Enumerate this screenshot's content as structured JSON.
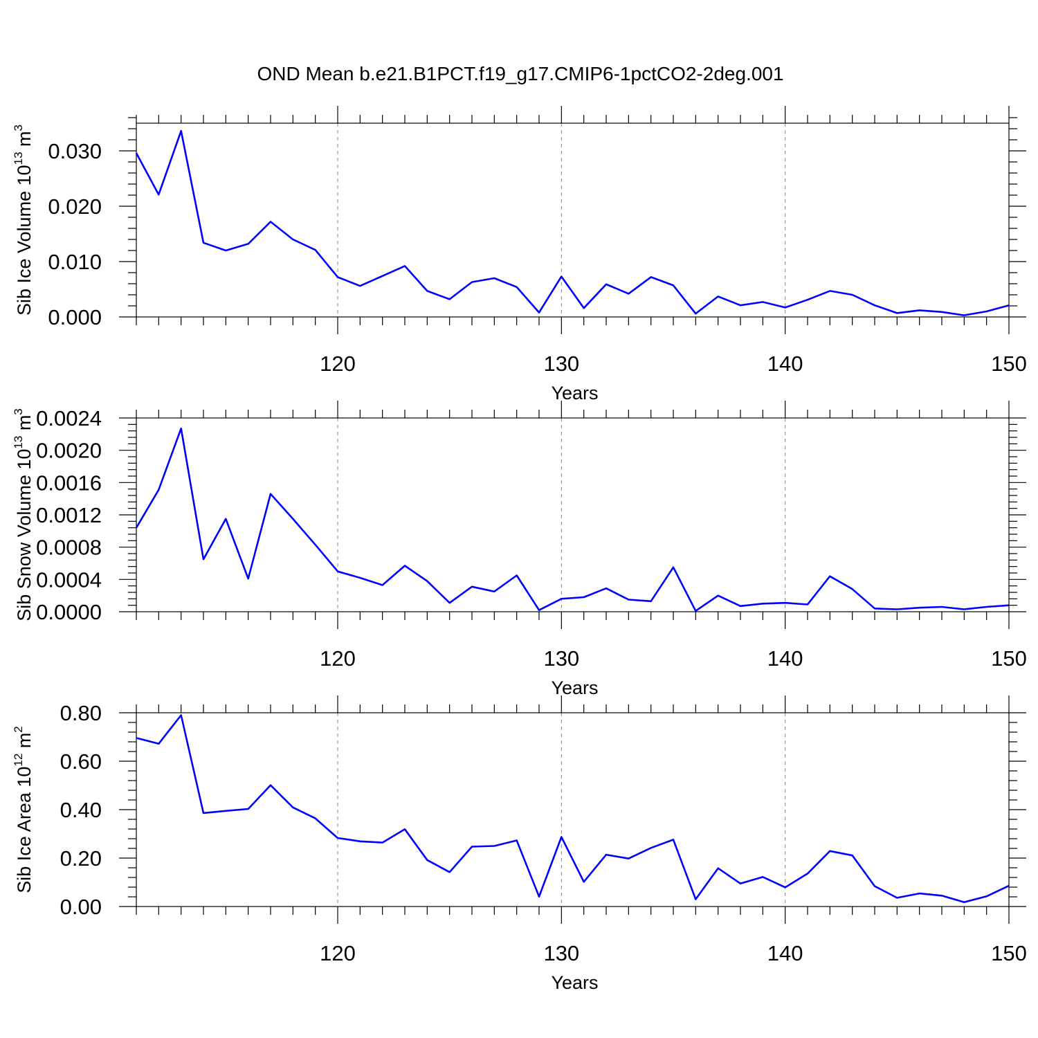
{
  "figure": {
    "title": "OND Mean b.e21.B1PCT.f19_g17.CMIP6-1pctCO2-2deg.001"
  },
  "chart_data": [
    {
      "type": "line",
      "title": "OND Mean b.e21.B1PCT.f19_g17.CMIP6-1pctCO2-2deg.001",
      "xlabel": "Years",
      "ylabel": "Sib Ice Volume 10^13 m^3",
      "ylabel_parts": {
        "text": "Sib Ice Volume 10",
        "exp1": "13",
        "unit": " m",
        "exp2": "3"
      },
      "xlim": [
        111,
        150
      ],
      "ylim": [
        0,
        0.035
      ],
      "xticks": [
        120,
        130,
        140,
        150
      ],
      "yticks": [
        0.0,
        0.01,
        0.02,
        0.03
      ],
      "ytick_labels": [
        "0.000",
        "0.010",
        "0.020",
        "0.030"
      ],
      "grid": "vertical-dashed",
      "line_color": "#0000ff",
      "series": [
        {
          "x": [
            111,
            112,
            113,
            114,
            115,
            116,
            117,
            118,
            119,
            120,
            121,
            122,
            123,
            124,
            125,
            126,
            127,
            128,
            129,
            130,
            131,
            132,
            133,
            134,
            135,
            136,
            137,
            138,
            139,
            140,
            141,
            142,
            143,
            144,
            145,
            146,
            147,
            148,
            149,
            150
          ],
          "values": [
            0.0296,
            0.0221,
            0.0336,
            0.0134,
            0.012,
            0.0132,
            0.0172,
            0.014,
            0.0121,
            0.0072,
            0.0056,
            0.0074,
            0.0092,
            0.0047,
            0.0032,
            0.0063,
            0.007,
            0.0054,
            0.0008,
            0.0073,
            0.0016,
            0.0059,
            0.0042,
            0.0072,
            0.0057,
            0.0006,
            0.0037,
            0.0021,
            0.0027,
            0.0017,
            0.0031,
            0.0047,
            0.004,
            0.0021,
            0.0007,
            0.0012,
            0.0009,
            0.0003,
            0.001,
            0.0021
          ]
        }
      ]
    },
    {
      "type": "line",
      "xlabel": "Years",
      "ylabel": "Sib Snow Volume 10^13 m^3",
      "ylabel_parts": {
        "text": "Sib Snow Volume 10",
        "exp1": "13",
        "unit": " m",
        "exp2": "3"
      },
      "xlim": [
        111,
        150
      ],
      "ylim": [
        0,
        0.0024
      ],
      "xticks": [
        120,
        130,
        140,
        150
      ],
      "yticks": [
        0.0,
        0.0004,
        0.0008,
        0.0012,
        0.0016,
        0.002,
        0.0024
      ],
      "ytick_labels": [
        "0.0000",
        "0.0004",
        "0.0008",
        "0.0012",
        "0.0016",
        "0.0020",
        "0.0024"
      ],
      "grid": "vertical-dashed",
      "line_color": "#0000ff",
      "series": [
        {
          "x": [
            111,
            112,
            113,
            114,
            115,
            116,
            117,
            118,
            119,
            120,
            121,
            122,
            123,
            124,
            125,
            126,
            127,
            128,
            129,
            130,
            131,
            132,
            133,
            134,
            135,
            136,
            137,
            138,
            139,
            140,
            141,
            142,
            143,
            144,
            145,
            146,
            147,
            148,
            149,
            150
          ],
          "values": [
            0.00104,
            0.00151,
            0.00227,
            0.00065,
            0.00115,
            0.00041,
            0.00146,
            0.00115,
            0.00083,
            0.0005,
            0.00042,
            0.00033,
            0.00057,
            0.00038,
            0.00011,
            0.00031,
            0.00025,
            0.00045,
            2e-05,
            0.00016,
            0.00018,
            0.00029,
            0.00015,
            0.00013,
            0.00055,
            1e-05,
            0.0002,
            7e-05,
            0.0001,
            0.00011,
            9e-05,
            0.00044,
            0.00028,
            4e-05,
            3e-05,
            5e-05,
            6e-05,
            3e-05,
            6e-05,
            8e-05
          ]
        }
      ]
    },
    {
      "type": "line",
      "xlabel": "Years",
      "ylabel": "Sib Ice Area 10^12 m^2",
      "ylabel_parts": {
        "text": "Sib Ice Area 10",
        "exp1": "12",
        "unit": " m",
        "exp2": "2"
      },
      "xlim": [
        111,
        150
      ],
      "ylim": [
        0,
        0.8
      ],
      "xticks": [
        120,
        130,
        140,
        150
      ],
      "yticks": [
        0.0,
        0.2,
        0.4,
        0.6,
        0.8
      ],
      "ytick_labels": [
        "0.00",
        "0.20",
        "0.40",
        "0.60",
        "0.80"
      ],
      "grid": "vertical-dashed",
      "line_color": "#0000ff",
      "series": [
        {
          "x": [
            111,
            112,
            113,
            114,
            115,
            116,
            117,
            118,
            119,
            120,
            121,
            122,
            123,
            124,
            125,
            126,
            127,
            128,
            129,
            130,
            131,
            132,
            133,
            134,
            135,
            136,
            137,
            138,
            139,
            140,
            141,
            142,
            143,
            144,
            145,
            146,
            147,
            148,
            149,
            150
          ],
          "values": [
            0.696,
            0.672,
            0.79,
            0.386,
            0.395,
            0.403,
            0.501,
            0.409,
            0.364,
            0.283,
            0.269,
            0.264,
            0.319,
            0.192,
            0.142,
            0.247,
            0.25,
            0.273,
            0.041,
            0.287,
            0.102,
            0.214,
            0.198,
            0.242,
            0.276,
            0.03,
            0.158,
            0.095,
            0.122,
            0.079,
            0.136,
            0.229,
            0.211,
            0.084,
            0.036,
            0.054,
            0.045,
            0.018,
            0.042,
            0.086
          ]
        }
      ]
    }
  ]
}
